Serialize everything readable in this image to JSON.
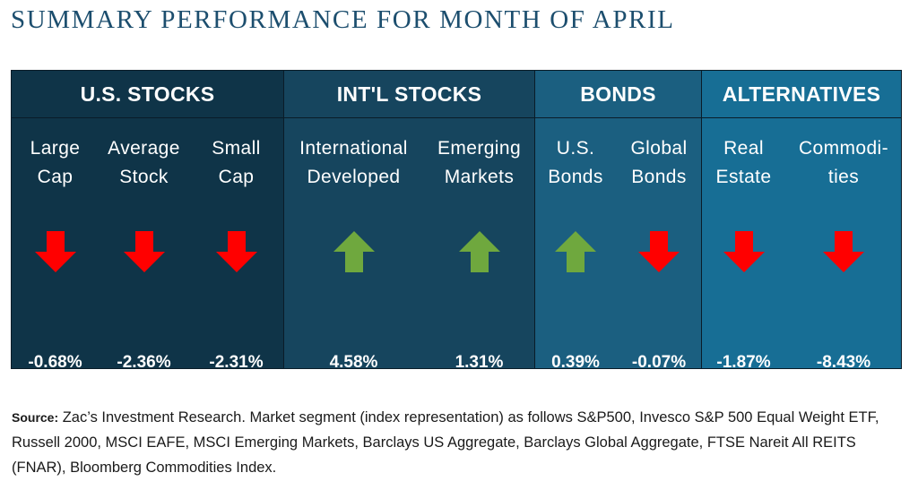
{
  "title": "SUMMARY PERFORMANCE FOR MONTH OF APRIL",
  "colors": {
    "us_stocks": "#0f3448",
    "intl_stocks": "#16455e",
    "bonds": "#1b5f80",
    "alternatives": "#176e95",
    "arrow_down": "#ff0000",
    "arrow_up": "#6fa83e"
  },
  "sections": [
    {
      "name": "U.S. STOCKS",
      "columns": [
        {
          "label": "Large\nCap",
          "value": "-0.68%",
          "direction": "down"
        },
        {
          "label": "Average\nStock",
          "value": "-2.36%",
          "direction": "down"
        },
        {
          "label": "Small\nCap",
          "value": "-2.31%",
          "direction": "down"
        }
      ]
    },
    {
      "name": "INT'L STOCKS",
      "columns": [
        {
          "label": "International\nDeveloped",
          "value": "4.58%",
          "direction": "up"
        },
        {
          "label": "Emerging\nMarkets",
          "value": "1.31%",
          "direction": "up"
        }
      ]
    },
    {
      "name": "BONDS",
      "columns": [
        {
          "label": "U.S.\nBonds",
          "value": "0.39%",
          "direction": "up"
        },
        {
          "label": "Global\nBonds",
          "value": "-0.07%",
          "direction": "down"
        }
      ]
    },
    {
      "name": "ALTERNATIVES",
      "columns": [
        {
          "label": "Real\nEstate",
          "value": "-1.87%",
          "direction": "down"
        },
        {
          "label": "Commodi-\nties",
          "value": "-8.43%",
          "direction": "down"
        }
      ]
    }
  ],
  "source": {
    "label": "Source:",
    "text": " Zac’s Investment Research. Market segment (index representation) as follows S&P500, Invesco S&P 500 Equal Weight ETF, Russell 2000, MSCI EAFE, MSCI Emerging Markets, Barclays US Aggregate, Barclays Global Aggregate, FTSE Nareit All REITS (FNAR), Bloomberg Commodities Index."
  }
}
